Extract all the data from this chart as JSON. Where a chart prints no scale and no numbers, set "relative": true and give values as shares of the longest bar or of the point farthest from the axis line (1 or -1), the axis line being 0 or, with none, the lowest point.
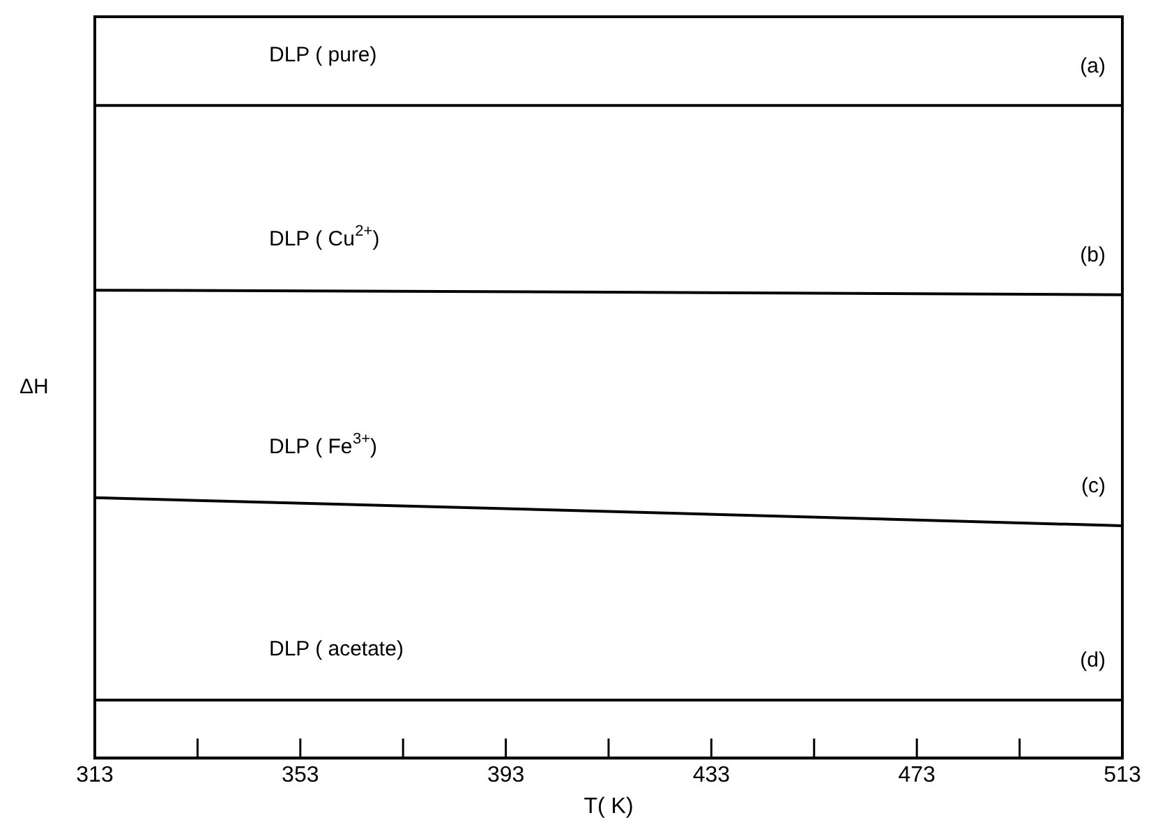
{
  "chart_data": {
    "type": "line",
    "relative": true,
    "xlabel": "T( K)",
    "ylabel": "ΔH",
    "xlim": [
      313,
      513
    ],
    "xticks": [
      313,
      {
        "value": 333,
        "label": null
      },
      353,
      {
        "value": 373,
        "label": null
      },
      393,
      {
        "value": 413,
        "label": null
      },
      433,
      {
        "value": 453,
        "label": null
      },
      473,
      {
        "value": 493,
        "label": null
      },
      513
    ],
    "marker": "none",
    "line_style": "solid",
    "series": [
      {
        "name": "DLP ( pure)",
        "color": "#000000",
        "x": [
          313,
          413,
          513
        ],
        "values": [
          1,
          1,
          1
        ]
      },
      {
        "name": "DLP ( Cu$^{2+}$)",
        "color": "#000000",
        "x": [
          313,
          413,
          513
        ],
        "values": [
          0.717,
          0.714,
          0.71
        ]
      },
      {
        "name": "DLP ( Fe$^{3+}$)",
        "color": "#000000",
        "x": [
          313,
          413,
          513
        ],
        "values": [
          0.399,
          0.378,
          0.356
        ]
      },
      {
        "name": "DLP ( acetate)",
        "color": "#000000",
        "x": [
          313,
          413,
          513
        ],
        "values": [
          0.089,
          0.089,
          0.089
        ]
      }
    ],
    "annotations": [
      "(a)",
      "(b)",
      "(c)",
      "(d)"
    ]
  }
}
